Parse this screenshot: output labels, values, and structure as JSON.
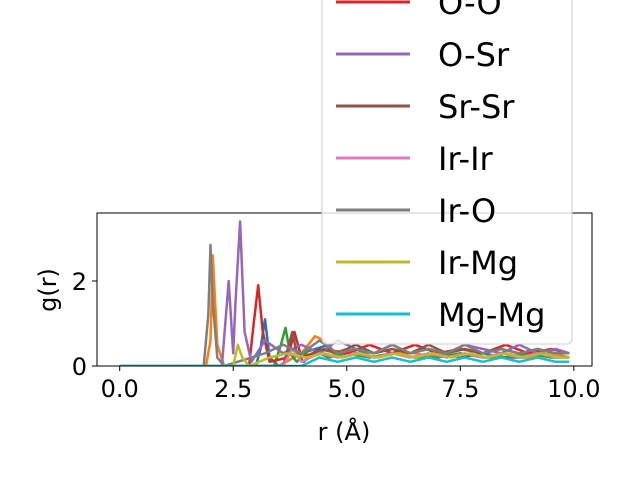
{
  "chart_data": {
    "type": "line",
    "title": "",
    "xlabel": "r (Å)",
    "ylabel": "g(r)",
    "xlim": [
      -0.5,
      10.4
    ],
    "ylim": [
      0,
      3.6
    ],
    "xticks": [
      0.0,
      2.5,
      5.0,
      7.5,
      10.0
    ],
    "xtick_labels": [
      "0.0",
      "2.5",
      "5.0",
      "7.5",
      "10.0"
    ],
    "yticks": [
      0,
      2
    ],
    "ytick_labels": [
      "0",
      "2"
    ],
    "grid": false,
    "legend_placement": "upper-right",
    "series": [
      {
        "name": "",
        "color": "#1f77b4",
        "x": [
          0,
          3.0,
          3.1,
          3.2,
          3.3,
          3.5,
          4.0,
          4.6,
          4.8,
          5.2,
          5.6,
          6.0,
          6.5,
          7.0,
          7.5,
          8.0,
          8.5,
          9.0,
          9.5,
          9.9
        ],
        "y": [
          0,
          0,
          0.4,
          1.1,
          0.2,
          0,
          0.3,
          0.5,
          0.2,
          0.4,
          0.2,
          0.3,
          0.2,
          0.3,
          0.2,
          0.3,
          0.2,
          0.2,
          0.3,
          0.2
        ]
      },
      {
        "name": "",
        "color": "#ff7f0e",
        "x": [
          0,
          1.9,
          2.0,
          2.05,
          2.15,
          2.3,
          3.5,
          4.0,
          4.3,
          4.5,
          4.7,
          5.0,
          5.5,
          6.0,
          6.5,
          7.0,
          7.5,
          8.0,
          8.5,
          9.0,
          9.5,
          9.9
        ],
        "y": [
          0,
          0,
          0.6,
          2.6,
          0.5,
          0,
          0,
          0.3,
          0.7,
          0.6,
          0.3,
          0.4,
          0.2,
          0.3,
          0.3,
          0.2,
          0.3,
          0.2,
          0.3,
          0.2,
          0.3,
          0.2
        ]
      },
      {
        "name": "",
        "color": "#2ca02c",
        "x": [
          0,
          3.4,
          3.55,
          3.65,
          3.75,
          3.9,
          4.2,
          4.6,
          5.0,
          5.5,
          6.0,
          6.5,
          7.0,
          7.5,
          8.0,
          8.5,
          9.0,
          9.5,
          9.9
        ],
        "y": [
          0,
          0,
          0.5,
          0.9,
          0.3,
          0.1,
          0.4,
          0.2,
          0.3,
          0.2,
          0.3,
          0.2,
          0.2,
          0.3,
          0.2,
          0.2,
          0.3,
          0.2,
          0.2
        ]
      },
      {
        "name": "O-O",
        "color": "#d62728",
        "x": [
          0,
          2.85,
          2.95,
          3.05,
          3.15,
          3.3,
          3.7,
          3.85,
          4.0,
          4.5,
          5.0,
          5.5,
          6.0,
          6.5,
          7.0,
          7.5,
          8.0,
          8.5,
          9.0,
          9.5,
          9.9
        ],
        "y": [
          0,
          0,
          1.0,
          1.9,
          0.8,
          0.1,
          0.2,
          0.8,
          0.2,
          0.4,
          0.3,
          0.5,
          0.3,
          0.5,
          0.3,
          0.4,
          0.3,
          0.5,
          0.3,
          0.4,
          0.3
        ]
      },
      {
        "name": "O-Sr",
        "color": "#9467bd",
        "x": [
          0,
          2.25,
          2.4,
          2.5,
          2.55,
          2.65,
          2.75,
          2.9,
          3.2,
          3.6,
          4.0,
          4.4,
          4.8,
          5.2,
          5.6,
          6.0,
          6.4,
          6.8,
          7.2,
          7.6,
          8.0,
          8.4,
          8.8,
          9.2,
          9.6,
          9.9
        ],
        "y": [
          0,
          0,
          2.0,
          0.3,
          1.5,
          3.4,
          0.8,
          0.1,
          0.6,
          0.3,
          0.5,
          0.3,
          0.6,
          0.4,
          0.3,
          0.5,
          0.3,
          0.4,
          0.3,
          0.5,
          0.4,
          0.3,
          0.5,
          0.3,
          0.4,
          0.3
        ]
      },
      {
        "name": "Sr-Sr",
        "color": "#8c564b",
        "x": [
          0,
          3.6,
          3.8,
          3.9,
          4.05,
          4.4,
          4.8,
          5.2,
          5.6,
          6.0,
          6.4,
          6.8,
          7.2,
          7.6,
          8.0,
          8.4,
          8.8,
          9.2,
          9.6,
          9.9
        ],
        "y": [
          0,
          0,
          0.8,
          0.3,
          0.1,
          0.4,
          0.3,
          0.5,
          0.3,
          0.4,
          0.3,
          0.5,
          0.3,
          0.4,
          0.3,
          0.4,
          0.3,
          0.4,
          0.3,
          0.3
        ]
      },
      {
        "name": "Ir-Ir",
        "color": "#e377c2",
        "x": [
          0,
          3.6,
          3.8,
          4.0,
          4.4,
          4.8,
          5.2,
          5.6,
          6.0,
          6.4,
          6.8,
          7.2,
          7.6,
          8.0,
          8.4,
          8.8,
          9.2,
          9.6,
          9.9
        ],
        "y": [
          0,
          0,
          0.4,
          0.1,
          0.3,
          0.2,
          0.3,
          0.2,
          0.3,
          0.2,
          0.3,
          0.2,
          0.3,
          0.2,
          0.3,
          0.2,
          0.3,
          0.2,
          0.2
        ]
      },
      {
        "name": "Ir-O",
        "color": "#7f7f7f",
        "x": [
          0,
          1.85,
          1.95,
          2.0,
          2.05,
          2.15,
          2.3,
          3.2,
          3.6,
          4.0,
          4.4,
          4.8,
          5.2,
          5.6,
          6.0,
          6.4,
          6.8,
          7.2,
          7.6,
          8.0,
          8.4,
          8.8,
          9.2,
          9.6,
          9.9
        ],
        "y": [
          0,
          0,
          1.2,
          2.85,
          1.5,
          0.2,
          0,
          0.3,
          0.5,
          0.3,
          0.6,
          0.3,
          0.4,
          0.3,
          0.5,
          0.3,
          0.4,
          0.3,
          0.5,
          0.3,
          0.4,
          0.3,
          0.4,
          0.3,
          0.3
        ]
      },
      {
        "name": "Ir-Mg",
        "color": "#bcbd22",
        "x": [
          0,
          2.5,
          2.6,
          2.7,
          2.85,
          3.3,
          3.7,
          4.1,
          4.5,
          4.9,
          5.3,
          5.7,
          6.1,
          6.5,
          6.9,
          7.3,
          7.7,
          8.1,
          8.5,
          8.9,
          9.3,
          9.7,
          9.9
        ],
        "y": [
          0,
          0,
          0.5,
          0.2,
          0,
          0.2,
          0.3,
          0.2,
          0.3,
          0.2,
          0.3,
          0.2,
          0.3,
          0.2,
          0.3,
          0.2,
          0.3,
          0.2,
          0.3,
          0.2,
          0.3,
          0.2,
          0.2
        ]
      },
      {
        "name": "Mg-Mg",
        "color": "#17becf",
        "x": [
          0,
          4.0,
          4.4,
          4.8,
          5.2,
          5.6,
          6.0,
          6.4,
          6.8,
          7.2,
          7.6,
          8.0,
          8.4,
          8.8,
          9.2,
          9.6,
          9.9
        ],
        "y": [
          0,
          0,
          0.2,
          0.1,
          0.2,
          0.1,
          0.2,
          0.1,
          0.2,
          0.1,
          0.2,
          0.1,
          0.2,
          0.1,
          0.2,
          0.1,
          0.1
        ]
      }
    ]
  }
}
